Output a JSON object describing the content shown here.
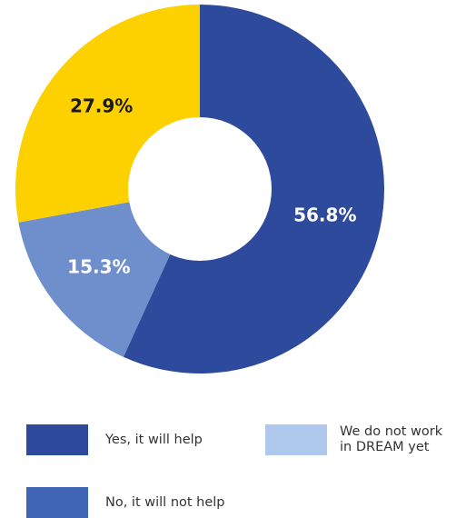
{
  "chart_data": {
    "type": "pie",
    "donut": true,
    "slices": [
      {
        "label": "Yes, it will help",
        "value": 56.8,
        "value_label": "56.8%",
        "color": "#2d4a9c",
        "label_color": "#ffffff"
      },
      {
        "label": "No, it will not help",
        "value": 15.3,
        "value_label": "15.3%",
        "color": "#6e8fcb",
        "label_color": "#ffffff"
      },
      {
        "label": "We do not work\nin DREAM yet",
        "value": 27.9,
        "value_label": "27.9%",
        "color": "#fdd100",
        "label_color": "#1a1a1a"
      }
    ],
    "legend": [
      {
        "label": "Yes, it will help",
        "color": "#2d4a9c"
      },
      {
        "label": "We do not work\nin DREAM yet",
        "color": "#aec8ee"
      },
      {
        "label": "No, it will not help",
        "color": "#3f65b5"
      }
    ]
  }
}
